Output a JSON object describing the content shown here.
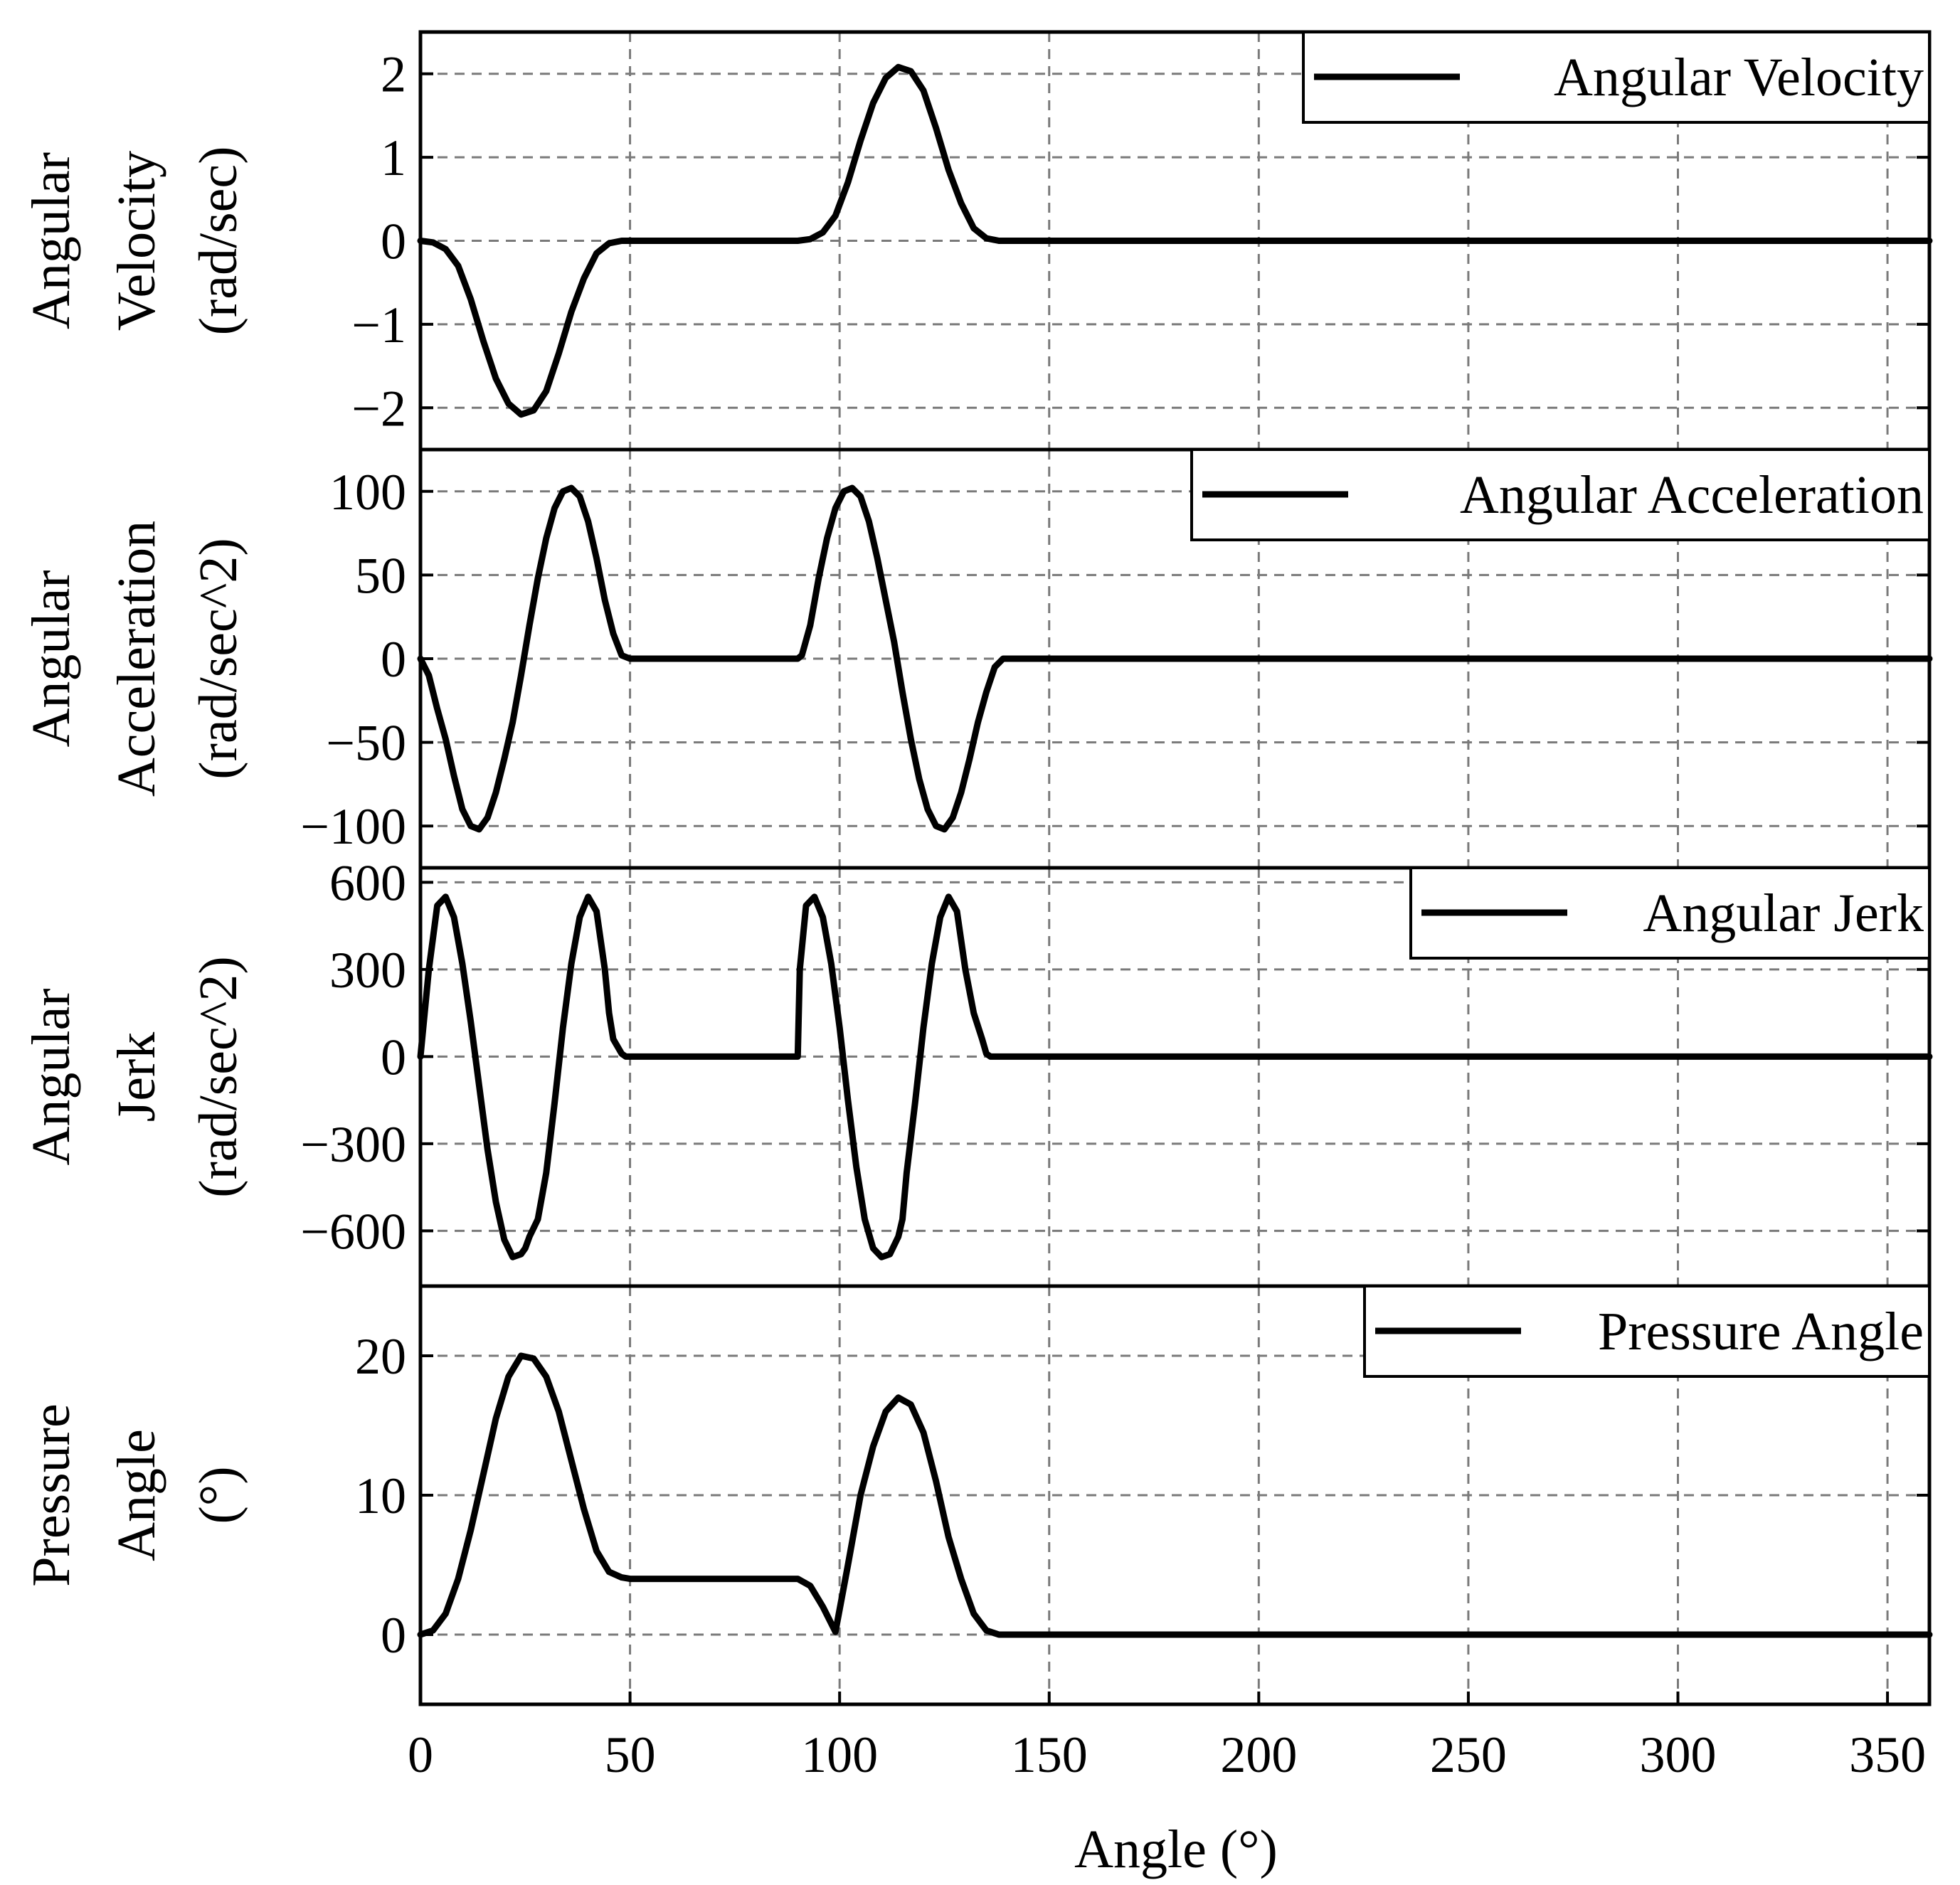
{
  "chart_data": [
    {
      "type": "line",
      "name": "velocity",
      "ylabel": [
        "Angular",
        "Velocity",
        "(rad/sec)"
      ],
      "legend": "Angular Velocity",
      "legend_position": "top-right",
      "ylim": [
        -2.5,
        2.5
      ],
      "xlim": [
        0,
        360
      ],
      "yticks": [
        2,
        1,
        0,
        -1,
        -2
      ],
      "ytick_labels": [
        "2",
        "1",
        "0",
        "−1",
        "−2"
      ],
      "grid": true,
      "x": [
        0,
        3,
        6,
        9,
        12,
        15,
        18,
        21,
        24,
        27,
        30,
        33,
        36,
        39,
        42,
        45,
        48,
        50,
        60,
        70,
        80,
        90,
        93,
        96,
        99,
        102,
        105,
        108,
        111,
        114,
        117,
        120,
        123,
        126,
        129,
        132,
        135,
        138,
        140,
        150,
        200,
        250,
        300,
        360
      ],
      "y": [
        0,
        -0.02,
        -0.1,
        -0.3,
        -0.7,
        -1.2,
        -1.65,
        -1.95,
        -2.08,
        -2.03,
        -1.8,
        -1.35,
        -0.85,
        -0.45,
        -0.15,
        -0.03,
        0,
        0,
        0,
        0,
        0,
        0,
        0.02,
        0.1,
        0.3,
        0.7,
        1.2,
        1.65,
        1.95,
        2.08,
        2.03,
        1.8,
        1.35,
        0.85,
        0.45,
        0.15,
        0.03,
        0,
        0,
        0,
        0,
        0,
        0,
        0
      ]
    },
    {
      "type": "line",
      "name": "acceleration",
      "ylabel": [
        "Angular",
        "Acceleration",
        "(rad/sec^2)"
      ],
      "legend": "Angular Acceleration",
      "legend_position": "top-right",
      "ylim": [
        -125,
        125
      ],
      "xlim": [
        0,
        360
      ],
      "yticks": [
        100,
        50,
        0,
        -50,
        -100
      ],
      "ytick_labels": [
        "100",
        "50",
        "0",
        "−50",
        "−100"
      ],
      "grid": true,
      "x": [
        0,
        2,
        4,
        6,
        8,
        10,
        12,
        14,
        16,
        18,
        20,
        22,
        24,
        26,
        28,
        30,
        32,
        34,
        36,
        38,
        40,
        42,
        44,
        46,
        48,
        50,
        60,
        70,
        80,
        90,
        91,
        93,
        95,
        97,
        99,
        101,
        103,
        105,
        107,
        109,
        111,
        113,
        115,
        117,
        119,
        121,
        123,
        125,
        127,
        129,
        131,
        133,
        135,
        137,
        139,
        140,
        150,
        200,
        250,
        300,
        360
      ],
      "y": [
        0,
        -10,
        -30,
        -48,
        -70,
        -90,
        -100,
        -102,
        -95,
        -80,
        -60,
        -38,
        -10,
        20,
        48,
        72,
        90,
        100,
        102,
        97,
        82,
        60,
        35,
        15,
        2,
        0,
        0,
        0,
        0,
        0,
        2,
        20,
        48,
        72,
        90,
        100,
        102,
        97,
        82,
        60,
        35,
        10,
        -20,
        -48,
        -72,
        -90,
        -100,
        -102,
        -95,
        -80,
        -60,
        -38,
        -20,
        -5,
        0,
        0,
        0,
        0,
        0,
        0,
        0
      ]
    },
    {
      "type": "line",
      "name": "jerk",
      "ylabel": [
        "Angular",
        "Jerk",
        "(rad/sec^2)"
      ],
      "legend": "Angular Jerk",
      "legend_position": "top-right",
      "ylim": [
        -790,
        650
      ],
      "xlim": [
        0,
        360
      ],
      "yticks": [
        600,
        300,
        0,
        -300,
        -600
      ],
      "ytick_labels": [
        "600",
        "300",
        "0",
        "−300",
        "−600"
      ],
      "grid": true,
      "x": [
        0,
        2,
        4,
        6,
        8,
        10,
        12,
        14,
        16,
        18,
        20,
        22,
        24,
        25,
        26,
        28,
        30,
        32,
        34,
        36,
        38,
        40,
        42,
        44,
        45,
        46,
        48,
        49,
        50,
        60,
        70,
        80,
        90,
        90.5,
        92,
        94,
        96,
        98,
        100,
        102,
        104,
        106,
        108,
        110,
        112,
        114,
        115,
        116,
        118,
        120,
        122,
        124,
        126,
        128,
        130,
        132,
        134,
        135,
        136,
        138,
        139,
        140,
        150,
        200,
        250,
        300,
        360
      ],
      "y": [
        0,
        300,
        520,
        550,
        480,
        320,
        120,
        -100,
        -320,
        -500,
        -630,
        -690,
        -680,
        -660,
        -620,
        -560,
        -400,
        -160,
        100,
        320,
        480,
        550,
        500,
        300,
        150,
        60,
        10,
        0,
        0,
        0,
        0,
        0,
        0,
        300,
        520,
        550,
        480,
        320,
        100,
        -150,
        -380,
        -560,
        -660,
        -690,
        -680,
        -620,
        -560,
        -400,
        -160,
        100,
        320,
        480,
        550,
        500,
        300,
        150,
        60,
        10,
        0,
        0,
        0,
        0,
        0,
        0,
        0,
        0,
        0
      ]
    },
    {
      "type": "line",
      "name": "pressure",
      "ylabel": [
        "Pressure",
        "Angle",
        "(°)"
      ],
      "legend": "Pressure Angle",
      "legend_position": "top-right",
      "ylim": [
        -5,
        25
      ],
      "xlim": [
        0,
        360
      ],
      "yticks": [
        20,
        10,
        0
      ],
      "ytick_labels": [
        "20",
        "10",
        "0"
      ],
      "grid": true,
      "x": [
        0,
        3,
        6,
        9,
        12,
        15,
        18,
        21,
        24,
        27,
        30,
        33,
        36,
        39,
        42,
        45,
        48,
        50,
        60,
        70,
        80,
        90,
        93,
        96,
        99,
        102,
        105,
        108,
        111,
        114,
        117,
        120,
        123,
        126,
        129,
        132,
        135,
        138,
        140,
        150,
        200,
        250,
        300,
        360
      ],
      "y": [
        0,
        0.3,
        1.5,
        4,
        7.5,
        11.5,
        15.5,
        18.5,
        20,
        19.8,
        18.5,
        16,
        12.5,
        9,
        6,
        4.5,
        4.1,
        4,
        4,
        4,
        4,
        4,
        3.5,
        2,
        0.2,
        5,
        10,
        13.5,
        16,
        17,
        16.5,
        14.5,
        11,
        7,
        4,
        1.5,
        0.3,
        0,
        0,
        0,
        0,
        0,
        0,
        0
      ]
    }
  ],
  "xaxis": {
    "label": "Angle (°)",
    "ticks": [
      0,
      50,
      100,
      150,
      200,
      250,
      300,
      350
    ],
    "tick_labels": [
      "0",
      "50",
      "100",
      "150",
      "200",
      "250",
      "300",
      "350"
    ]
  }
}
